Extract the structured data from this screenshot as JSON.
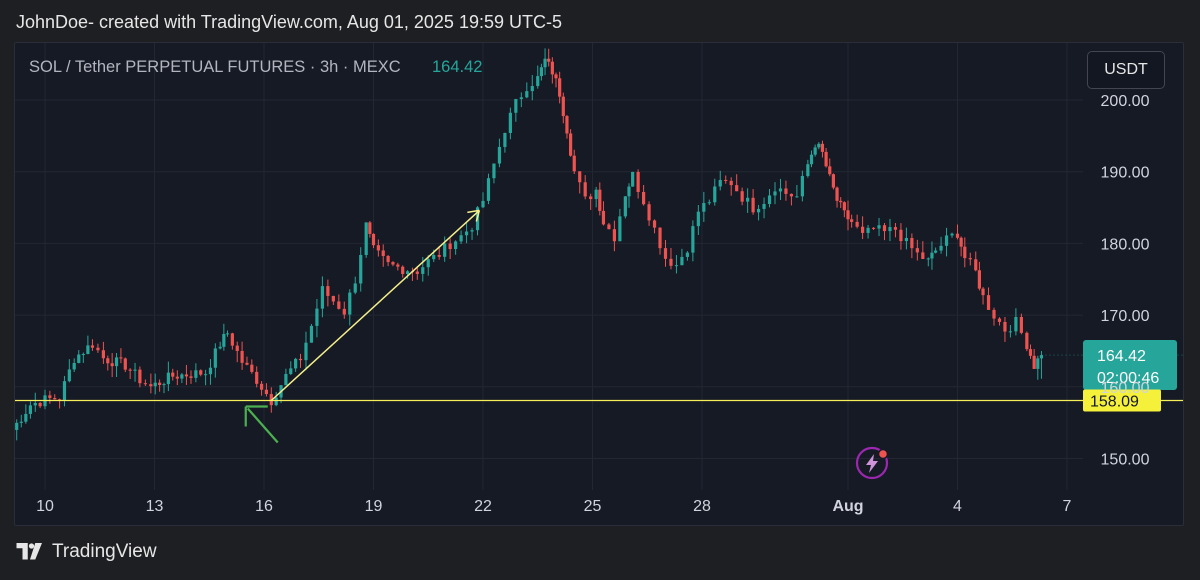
{
  "header": {
    "text": "JohnDoe- created with TradingView.com, Aug 01, 2025 19:59 UTC-5"
  },
  "footer": {
    "brand": "TradingView"
  },
  "symbol": {
    "title": "SOL / Tether PERPETUAL FUTURES · 3h · MEXC",
    "last_price": "164.42",
    "countdown": "02:00:46",
    "unit": "USDT",
    "line_level": "158.09"
  },
  "colors": {
    "up": "#26a69a",
    "down": "#ef5350",
    "hline": "#f5f05a",
    "arrow_up": "#f5f08a",
    "arrow_green": "#4caf50"
  },
  "chart_data": {
    "type": "candlestick",
    "y_ticks": [
      "150.00",
      "160.00",
      "170.00",
      "180.00",
      "190.00",
      "200.00"
    ],
    "ylim": [
      145,
      208
    ],
    "x_ticks": [
      {
        "label": "10",
        "day": 10
      },
      {
        "label": "13",
        "day": 13
      },
      {
        "label": "16",
        "day": 16
      },
      {
        "label": "19",
        "day": 19
      },
      {
        "label": "22",
        "day": 22
      },
      {
        "label": "25",
        "day": 25
      },
      {
        "label": "28",
        "day": 28
      },
      {
        "label": "Aug",
        "day": 32
      },
      {
        "label": "4",
        "day": 35
      },
      {
        "label": "7",
        "day": 38
      }
    ],
    "horizontal_line": 158.09,
    "close_path": [
      [
        9.1,
        154.0
      ],
      [
        9.6,
        157.5
      ],
      [
        10.0,
        158.2
      ],
      [
        10.4,
        158.5
      ],
      [
        10.8,
        164.0
      ],
      [
        11.3,
        166.0
      ],
      [
        11.6,
        164.0
      ],
      [
        12.2,
        163.0
      ],
      [
        12.6,
        161.0
      ],
      [
        12.9,
        160.0
      ],
      [
        13.5,
        161.5
      ],
      [
        14.0,
        161.8
      ],
      [
        14.4,
        162.0
      ],
      [
        14.8,
        166.0
      ],
      [
        15.0,
        167.5
      ],
      [
        15.4,
        163.5
      ],
      [
        15.8,
        161.0
      ],
      [
        16.2,
        158.1
      ],
      [
        16.6,
        161.5
      ],
      [
        17.0,
        164.0
      ],
      [
        17.3,
        168.5
      ],
      [
        17.6,
        173.5
      ],
      [
        17.9,
        172.0
      ],
      [
        18.2,
        170.5
      ],
      [
        18.5,
        175.0
      ],
      [
        18.8,
        182.5
      ],
      [
        19.0,
        179.0
      ],
      [
        19.4,
        177.0
      ],
      [
        19.8,
        176.5
      ],
      [
        20.2,
        176.2
      ],
      [
        20.5,
        177.5
      ],
      [
        20.8,
        178.5
      ],
      [
        21.1,
        180.0
      ],
      [
        21.4,
        181.0
      ],
      [
        21.7,
        182.5
      ],
      [
        22.0,
        186.0
      ],
      [
        22.3,
        191.0
      ],
      [
        22.6,
        196.0
      ],
      [
        22.9,
        199.5
      ],
      [
        23.2,
        202.0
      ],
      [
        23.5,
        203.0
      ],
      [
        23.7,
        205.5
      ],
      [
        23.9,
        204.0
      ],
      [
        24.1,
        201.0
      ],
      [
        24.3,
        196.0
      ],
      [
        24.5,
        190.0
      ],
      [
        24.8,
        186.0
      ],
      [
        25.1,
        187.5
      ],
      [
        25.3,
        183.0
      ],
      [
        25.6,
        181.0
      ],
      [
        25.9,
        187.0
      ],
      [
        26.1,
        189.5
      ],
      [
        26.4,
        186.0
      ],
      [
        26.7,
        182.0
      ],
      [
        27.0,
        178.0
      ],
      [
        27.3,
        177.0
      ],
      [
        27.6,
        179.5
      ],
      [
        27.9,
        184.5
      ],
      [
        28.2,
        186.0
      ],
      [
        28.5,
        188.5
      ],
      [
        28.8,
        188.5
      ],
      [
        29.1,
        186.5
      ],
      [
        29.4,
        185.0
      ],
      [
        29.7,
        186.0
      ],
      [
        30.0,
        188.0
      ],
      [
        30.3,
        187.0
      ],
      [
        30.6,
        186.5
      ],
      [
        30.9,
        191.0
      ],
      [
        31.1,
        194.0
      ],
      [
        31.3,
        192.5
      ],
      [
        31.5,
        189.0
      ],
      [
        31.7,
        186.0
      ],
      [
        31.9,
        184.0
      ],
      [
        32.1,
        183.0
      ],
      [
        32.4,
        181.0
      ],
      [
        32.7,
        182.0
      ],
      [
        33.0,
        181.5
      ],
      [
        33.3,
        182.0
      ],
      [
        33.6,
        180.0
      ],
      [
        33.9,
        178.5
      ],
      [
        34.2,
        177.5
      ],
      [
        34.4,
        179.0
      ],
      [
        34.7,
        180.5
      ],
      [
        35.0,
        181.5
      ],
      [
        35.2,
        178.0
      ],
      [
        35.5,
        176.0
      ],
      [
        35.7,
        172.5
      ],
      [
        36.0,
        170.0
      ],
      [
        36.3,
        168.0
      ],
      [
        36.6,
        169.0
      ],
      [
        36.9,
        166.0
      ],
      [
        37.1,
        163.0
      ],
      [
        37.3,
        164.42
      ]
    ]
  }
}
